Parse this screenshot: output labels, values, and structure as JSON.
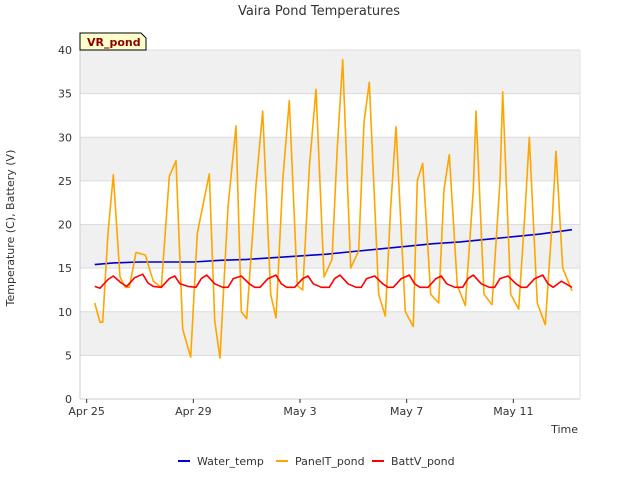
{
  "chart_data": {
    "type": "line",
    "title": "Vaira Pond Temperatures",
    "xlabel": "Time",
    "ylabel": "Temperature (C), Battery (V)",
    "ylim": [
      0,
      40
    ],
    "xlim": [
      "2015-04-24T18:00",
      "2015-05-13T12:00"
    ],
    "yticks": [
      0,
      5,
      10,
      15,
      20,
      25,
      30,
      35,
      40
    ],
    "xticks": [
      "Apr 25",
      "Apr 29",
      "May 3",
      "May 7",
      "May 11"
    ],
    "grid": true,
    "legend_position": "bottom",
    "badge": "VR_pond",
    "series": [
      {
        "name": "Water_temp",
        "color": "#0000cc",
        "x": [
          0.3,
          1,
          2,
          3,
          4,
          5,
          6,
          7,
          8,
          9,
          10,
          11,
          12,
          13,
          14,
          15,
          16,
          17,
          18.2
        ],
        "y": [
          15.4,
          15.6,
          15.7,
          15.7,
          15.7,
          15.9,
          16.0,
          16.2,
          16.4,
          16.6,
          16.9,
          17.2,
          17.5,
          17.8,
          18.0,
          18.3,
          18.6,
          18.9,
          19.4
        ]
      },
      {
        "name": "PanelT_pond",
        "color": "#ffa500",
        "x": [
          0.3,
          0.5,
          0.6,
          0.8,
          1.0,
          1.25,
          1.45,
          1.6,
          1.85,
          2.2,
          2.5,
          2.8,
          3.1,
          3.35,
          3.6,
          3.9,
          4.15,
          4.6,
          4.8,
          5.0,
          5.3,
          5.6,
          5.8,
          6.0,
          6.35,
          6.6,
          6.9,
          7.1,
          7.35,
          7.6,
          7.9,
          8.1,
          8.35,
          8.6,
          8.9,
          9.2,
          9.4,
          9.6,
          9.9,
          10.2,
          10.4,
          10.6,
          10.95,
          11.2,
          11.4,
          11.6,
          11.95,
          12.25,
          12.4,
          12.6,
          12.9,
          13.2,
          13.4,
          13.6,
          13.9,
          14.2,
          14.5,
          14.6,
          14.9,
          15.2,
          15.5,
          15.6,
          15.9,
          16.2,
          16.45,
          16.6,
          16.9,
          17.2,
          17.45,
          17.6,
          17.85,
          18.2
        ],
        "y": [
          11.0,
          8.8,
          8.8,
          19.0,
          25.7,
          14.0,
          12.8,
          12.8,
          16.8,
          16.5,
          13.5,
          12.8,
          25.5,
          27.3,
          8.0,
          4.8,
          19.0,
          25.8,
          9.0,
          4.7,
          22.0,
          31.3,
          10.0,
          9.2,
          24.5,
          33.0,
          12.0,
          9.3,
          25.0,
          34.2,
          13.0,
          12.5,
          26.5,
          35.5,
          14.0,
          16.0,
          28.8,
          38.9,
          15.0,
          17.0,
          31.7,
          36.3,
          12.0,
          9.5,
          22.0,
          31.2,
          10.0,
          8.3,
          25.0,
          27.0,
          12.0,
          11.0,
          24.0,
          28.0,
          13.0,
          10.7,
          24.0,
          33.0,
          12.0,
          10.8,
          25.0,
          35.2,
          12.0,
          10.3,
          22.0,
          30.0,
          11.0,
          8.5,
          20.0,
          28.4,
          15.0,
          12.4
        ]
      },
      {
        "name": "BattV_pond",
        "color": "#ff0000",
        "x": [
          0.3,
          0.5,
          0.8,
          1.0,
          1.3,
          1.5,
          1.8,
          2.1,
          2.3,
          2.5,
          2.8,
          3.1,
          3.3,
          3.5,
          3.8,
          4.1,
          4.3,
          4.5,
          4.8,
          5.1,
          5.3,
          5.5,
          5.8,
          6.1,
          6.3,
          6.5,
          6.8,
          7.1,
          7.3,
          7.5,
          7.8,
          8.1,
          8.3,
          8.5,
          8.8,
          9.1,
          9.3,
          9.5,
          9.8,
          10.1,
          10.3,
          10.5,
          10.8,
          11.1,
          11.3,
          11.5,
          11.8,
          12.1,
          12.3,
          12.5,
          12.8,
          13.1,
          13.3,
          13.5,
          13.8,
          14.1,
          14.3,
          14.5,
          14.8,
          15.1,
          15.3,
          15.5,
          15.8,
          16.1,
          16.3,
          16.5,
          16.8,
          17.1,
          17.3,
          17.5,
          17.8,
          18.2
        ],
        "y": [
          12.9,
          12.7,
          13.7,
          14.1,
          13.3,
          12.9,
          13.9,
          14.3,
          13.3,
          12.9,
          12.8,
          13.8,
          14.1,
          13.2,
          12.9,
          12.8,
          13.8,
          14.2,
          13.2,
          12.8,
          12.8,
          13.8,
          14.1,
          13.2,
          12.8,
          12.8,
          13.8,
          14.2,
          13.2,
          12.8,
          12.8,
          13.8,
          14.1,
          13.2,
          12.8,
          12.8,
          13.8,
          14.2,
          13.2,
          12.8,
          12.8,
          13.8,
          14.1,
          13.2,
          12.8,
          12.8,
          13.8,
          14.2,
          13.2,
          12.8,
          12.8,
          13.8,
          14.1,
          13.2,
          12.8,
          12.8,
          13.8,
          14.2,
          13.2,
          12.8,
          12.8,
          13.8,
          14.1,
          13.2,
          12.8,
          12.8,
          13.8,
          14.2,
          13.2,
          12.8,
          13.5,
          12.8
        ]
      }
    ]
  }
}
